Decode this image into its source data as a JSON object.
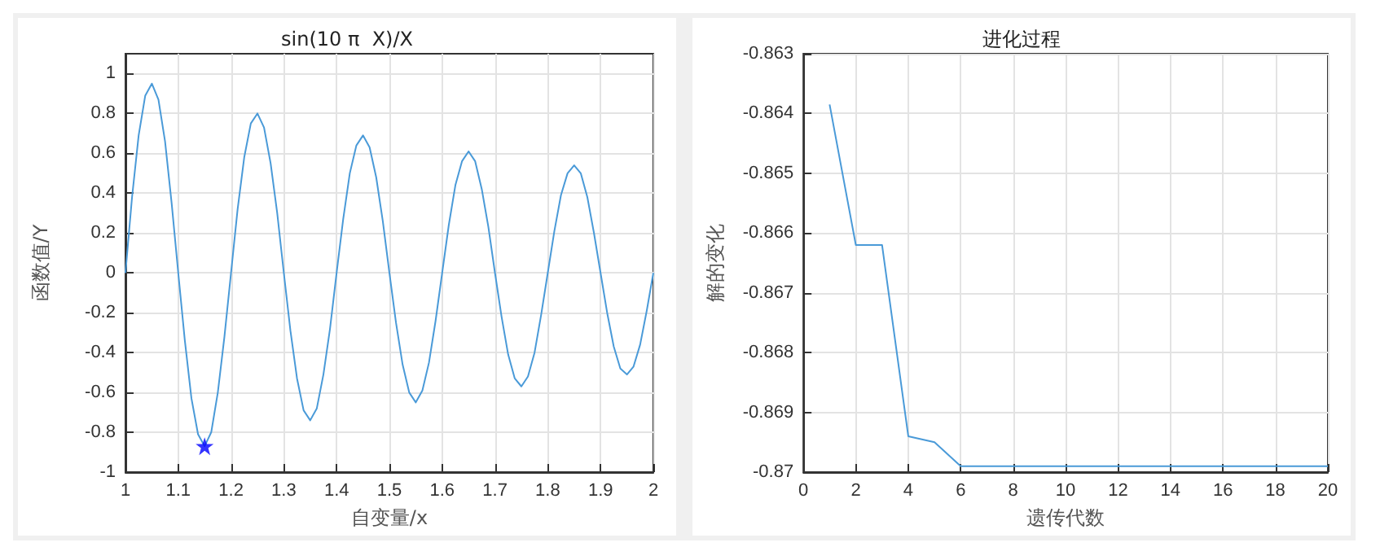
{
  "chart_data": [
    {
      "type": "line",
      "title": "sin(10 π  X)/X",
      "xlabel": "自变量/x",
      "ylabel": "函数值/Y",
      "xlim": [
        1,
        2
      ],
      "xticks": [
        1,
        1.1,
        1.2,
        1.3,
        1.4,
        1.5,
        1.6,
        1.7,
        1.8,
        1.9,
        2
      ],
      "ylim": [
        -1,
        1.1
      ],
      "yticks": [
        -1,
        -0.8,
        -0.6,
        -0.4,
        -0.2,
        0,
        0.2,
        0.4,
        0.6,
        0.8,
        1
      ],
      "grid": true,
      "series": [
        {
          "color": "#4a9ad8",
          "x": [
            1,
            1.0125,
            1.025,
            1.0375,
            1.05,
            1.0625,
            1.075,
            1.0875,
            1.1,
            1.1125,
            1.125,
            1.1375,
            1.15,
            1.1625,
            1.175,
            1.1875,
            1.2,
            1.2125,
            1.225,
            1.2375,
            1.25,
            1.2625,
            1.275,
            1.2875,
            1.3,
            1.3125,
            1.325,
            1.3375,
            1.35,
            1.3625,
            1.375,
            1.3875,
            1.4,
            1.4125,
            1.425,
            1.4375,
            1.45,
            1.4625,
            1.475,
            1.4875,
            1.5,
            1.5125,
            1.525,
            1.5375,
            1.55,
            1.5625,
            1.575,
            1.5875,
            1.6,
            1.6125,
            1.625,
            1.6375,
            1.65,
            1.6625,
            1.675,
            1.6875,
            1.7,
            1.7125,
            1.725,
            1.7375,
            1.75,
            1.7625,
            1.775,
            1.7875,
            1.8,
            1.8125,
            1.825,
            1.8375,
            1.85,
            1.8625,
            1.875,
            1.8875,
            1.9,
            1.9125,
            1.925,
            1.9375,
            1.95,
            1.9625,
            1.975,
            1.9875,
            2
          ],
          "values": [
            0,
            0.38,
            0.69,
            0.89,
            0.95,
            0.87,
            0.66,
            0.35,
            0,
            -0.34,
            -0.63,
            -0.81,
            -0.87,
            -0.8,
            -0.6,
            -0.32,
            0,
            0.32,
            0.58,
            0.75,
            0.8,
            0.73,
            0.55,
            0.3,
            0,
            -0.29,
            -0.53,
            -0.69,
            -0.74,
            -0.68,
            -0.51,
            -0.28,
            0,
            0.27,
            0.5,
            0.64,
            0.69,
            0.63,
            0.48,
            0.26,
            0,
            -0.25,
            -0.46,
            -0.6,
            -0.65,
            -0.59,
            -0.45,
            -0.24,
            0,
            0.24,
            0.44,
            0.56,
            0.61,
            0.56,
            0.42,
            0.23,
            0,
            -0.22,
            -0.41,
            -0.53,
            -0.57,
            -0.52,
            -0.4,
            -0.21,
            0,
            0.21,
            0.39,
            0.5,
            0.54,
            0.5,
            0.38,
            0.2,
            0,
            -0.2,
            -0.37,
            -0.48,
            -0.51,
            -0.47,
            -0.36,
            -0.19,
            0
          ]
        },
        {
          "type": "scatter",
          "marker": "star",
          "color": "#0000ff",
          "x": [
            1.15
          ],
          "values": [
            -0.87
          ]
        }
      ]
    },
    {
      "type": "line",
      "title": "进化过程",
      "xlabel": "遗传代数",
      "ylabel": "解的变化",
      "xlim": [
        0,
        20
      ],
      "xticks": [
        0,
        2,
        4,
        6,
        8,
        10,
        12,
        14,
        16,
        18,
        20
      ],
      "ylim": [
        -0.87,
        -0.863
      ],
      "yticks": [
        -0.87,
        -0.869,
        -0.868,
        -0.867,
        -0.866,
        -0.865,
        -0.864,
        -0.863
      ],
      "grid": true,
      "series": [
        {
          "color": "#4a9ad8",
          "x": [
            1,
            2,
            3,
            4,
            5,
            6,
            7,
            8,
            9,
            10,
            11,
            12,
            13,
            14,
            15,
            16,
            17,
            18,
            19,
            20
          ],
          "values": [
            -0.86385,
            -0.8662,
            -0.8662,
            -0.8694,
            -0.8695,
            -0.8699,
            -0.8699,
            -0.8699,
            -0.8699,
            -0.8699,
            -0.8699,
            -0.8699,
            -0.8699,
            -0.8699,
            -0.8699,
            -0.8699,
            -0.8699,
            -0.8699,
            -0.8699,
            -0.8699
          ]
        }
      ]
    }
  ]
}
